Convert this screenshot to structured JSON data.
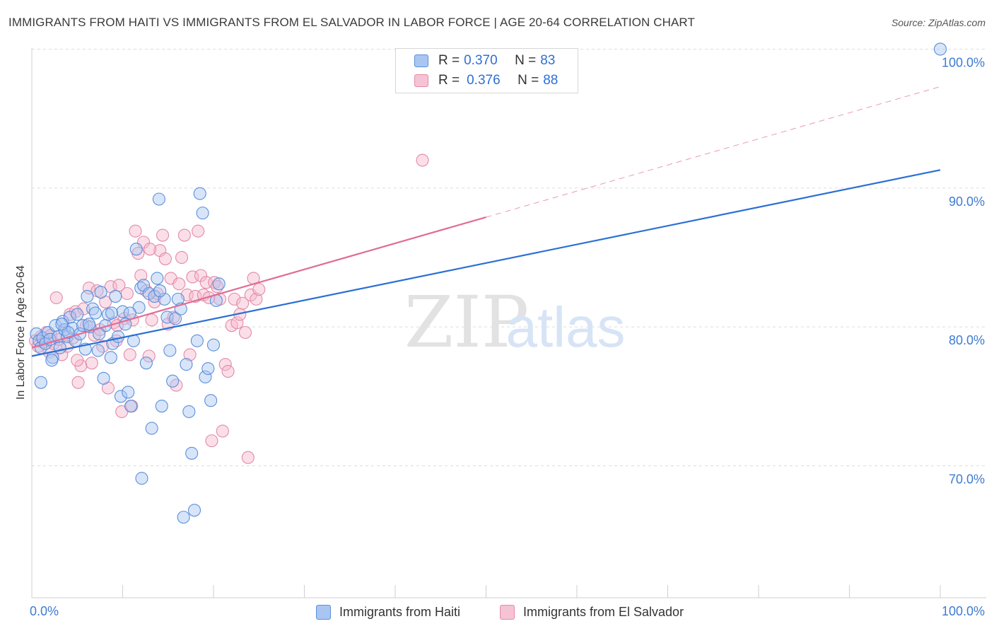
{
  "title": "IMMIGRANTS FROM HAITI VS IMMIGRANTS FROM EL SALVADOR IN LABOR FORCE | AGE 20-64 CORRELATION CHART",
  "source": "Source: ZipAtlas.com",
  "watermark": {
    "zip": "ZIP",
    "atlas": "atlas"
  },
  "colors": {
    "haiti_fill": "#a9c6f2",
    "haiti_stroke": "#5b8fdc",
    "haiti_line": "#2a6fd4",
    "salvador_fill": "#f6b8cc",
    "salvador_stroke": "#e389a8",
    "salvador_line": "#e06c96",
    "tick_text": "#3d7bd1",
    "grid": "#dddddd"
  },
  "legend": {
    "rows": [
      {
        "r_label": "R = ",
        "r_value": "0.370",
        "n_label": "N = ",
        "n_value": "83"
      },
      {
        "r_label": "R = ",
        "r_value": "0.376",
        "n_label": "N = ",
        "n_value": "88"
      }
    ]
  },
  "bottom_legend": {
    "haiti": "Immigrants from Haiti",
    "salvador": "Immigrants from El Salvador"
  },
  "chart_data": {
    "type": "scatter",
    "title": "IMMIGRANTS FROM HAITI VS IMMIGRANTS FROM EL SALVADOR IN LABOR FORCE | AGE 20-64 CORRELATION CHART",
    "xlabel": "",
    "ylabel": "In Labor Force | Age 20-64",
    "xlim": [
      0,
      100
    ],
    "ylim": [
      60.5,
      101.5
    ],
    "x_ticks": [
      "0.0%",
      "100.0%"
    ],
    "y_ticks": [
      {
        "value": 70,
        "label": "70.0%"
      },
      {
        "value": 80,
        "label": "80.0%"
      },
      {
        "value": 90,
        "label": "90.0%"
      },
      {
        "value": 100,
        "label": "100.0%"
      }
    ],
    "grid": true,
    "legend_position": "top-center",
    "series": [
      {
        "name": "Immigrants from Haiti",
        "r": 0.37,
        "n": 83,
        "trend": {
          "x": [
            0,
            100
          ],
          "y": [
            77.9,
            91.3
          ],
          "dashed_from": null
        },
        "points": [
          [
            0.5,
            79.5
          ],
          [
            0.8,
            79.0
          ],
          [
            1.0,
            78.5
          ],
          [
            1.2,
            79.2
          ],
          [
            1.5,
            78.8
          ],
          [
            1.8,
            79.6
          ],
          [
            2.0,
            79.1
          ],
          [
            2.3,
            77.8
          ],
          [
            2.6,
            80.1
          ],
          [
            2.9,
            79.3
          ],
          [
            3.1,
            78.5
          ],
          [
            3.4,
            80.4
          ],
          [
            3.6,
            79.8
          ],
          [
            3.9,
            79.3
          ],
          [
            4.2,
            80.7
          ],
          [
            4.5,
            79.9
          ],
          [
            4.8,
            79.0
          ],
          [
            5.0,
            80.9
          ],
          [
            5.3,
            79.5
          ],
          [
            5.6,
            80.1
          ],
          [
            5.9,
            78.4
          ],
          [
            6.1,
            82.2
          ],
          [
            6.4,
            80.0
          ],
          [
            6.7,
            81.3
          ],
          [
            7.0,
            81.0
          ],
          [
            7.3,
            78.3
          ],
          [
            7.6,
            82.5
          ],
          [
            7.9,
            76.3
          ],
          [
            8.1,
            80.1
          ],
          [
            8.4,
            80.9
          ],
          [
            8.7,
            77.8
          ],
          [
            8.9,
            78.8
          ],
          [
            9.2,
            82.2
          ],
          [
            9.5,
            79.3
          ],
          [
            9.8,
            75.0
          ],
          [
            10.0,
            81.1
          ],
          [
            10.3,
            80.2
          ],
          [
            10.6,
            75.3
          ],
          [
            10.9,
            74.3
          ],
          [
            11.2,
            79.0
          ],
          [
            11.5,
            85.6
          ],
          [
            11.8,
            81.4
          ],
          [
            12.0,
            82.8
          ],
          [
            12.3,
            83.0
          ],
          [
            12.6,
            77.4
          ],
          [
            12.9,
            82.4
          ],
          [
            13.2,
            72.7
          ],
          [
            13.5,
            82.2
          ],
          [
            13.8,
            83.5
          ],
          [
            14.0,
            89.2
          ],
          [
            14.3,
            74.3
          ],
          [
            14.6,
            82.0
          ],
          [
            14.9,
            80.7
          ],
          [
            15.2,
            78.3
          ],
          [
            15.5,
            76.1
          ],
          [
            15.8,
            80.6
          ],
          [
            16.1,
            82.0
          ],
          [
            16.4,
            81.3
          ],
          [
            16.7,
            66.3
          ],
          [
            17.0,
            77.3
          ],
          [
            17.3,
            73.9
          ],
          [
            17.6,
            70.9
          ],
          [
            17.9,
            66.8
          ],
          [
            18.2,
            79.0
          ],
          [
            18.5,
            89.6
          ],
          [
            18.8,
            88.2
          ],
          [
            19.1,
            76.4
          ],
          [
            19.4,
            77.0
          ],
          [
            19.7,
            74.7
          ],
          [
            20.0,
            78.7
          ],
          [
            20.3,
            81.9
          ],
          [
            20.6,
            83.1
          ],
          [
            1.0,
            76.0
          ],
          [
            2.2,
            77.6
          ],
          [
            4.0,
            79.6
          ],
          [
            6.3,
            80.2
          ],
          [
            8.8,
            81.0
          ],
          [
            10.8,
            81.0
          ],
          [
            12.1,
            69.1
          ],
          [
            14.1,
            82.6
          ],
          [
            3.3,
            80.2
          ],
          [
            7.4,
            79.5
          ],
          [
            100,
            100.0
          ]
        ]
      },
      {
        "name": "Immigrants from El Salvador",
        "r": 0.376,
        "n": 88,
        "trend": {
          "x": [
            0,
            100
          ],
          "y": [
            78.5,
            97.3
          ],
          "dashed_from": 50
        },
        "points": [
          [
            0.4,
            79.0
          ],
          [
            0.7,
            78.6
          ],
          [
            1.0,
            79.3
          ],
          [
            1.3,
            78.9
          ],
          [
            1.6,
            79.6
          ],
          [
            1.9,
            78.2
          ],
          [
            2.1,
            79.4
          ],
          [
            2.4,
            78.8
          ],
          [
            2.7,
            82.1
          ],
          [
            3.0,
            79.1
          ],
          [
            3.3,
            78.0
          ],
          [
            3.6,
            79.8
          ],
          [
            3.9,
            78.6
          ],
          [
            4.2,
            80.9
          ],
          [
            4.5,
            79.2
          ],
          [
            4.8,
            81.1
          ],
          [
            5.1,
            76.0
          ],
          [
            5.4,
            77.2
          ],
          [
            5.7,
            81.3
          ],
          [
            6.0,
            80.1
          ],
          [
            6.3,
            82.8
          ],
          [
            6.6,
            77.4
          ],
          [
            6.9,
            79.4
          ],
          [
            7.2,
            82.6
          ],
          [
            7.5,
            79.8
          ],
          [
            7.8,
            78.6
          ],
          [
            8.1,
            81.8
          ],
          [
            8.4,
            75.6
          ],
          [
            8.7,
            82.9
          ],
          [
            9.0,
            80.3
          ],
          [
            9.3,
            79.0
          ],
          [
            9.6,
            83.0
          ],
          [
            9.9,
            73.9
          ],
          [
            10.2,
            80.6
          ],
          [
            10.5,
            82.4
          ],
          [
            10.8,
            78.0
          ],
          [
            11.1,
            80.5
          ],
          [
            11.4,
            86.9
          ],
          [
            11.7,
            85.3
          ],
          [
            12.0,
            83.7
          ],
          [
            12.3,
            86.1
          ],
          [
            12.6,
            82.6
          ],
          [
            12.9,
            77.9
          ],
          [
            13.2,
            80.5
          ],
          [
            13.5,
            81.8
          ],
          [
            13.8,
            82.4
          ],
          [
            14.1,
            85.5
          ],
          [
            14.4,
            86.6
          ],
          [
            14.7,
            84.9
          ],
          [
            15.0,
            80.2
          ],
          [
            15.3,
            83.5
          ],
          [
            15.6,
            80.7
          ],
          [
            15.9,
            75.8
          ],
          [
            16.2,
            83.1
          ],
          [
            16.5,
            85.0
          ],
          [
            16.8,
            86.6
          ],
          [
            17.1,
            82.3
          ],
          [
            17.4,
            78.0
          ],
          [
            17.7,
            83.6
          ],
          [
            18.0,
            82.2
          ],
          [
            18.3,
            86.9
          ],
          [
            18.6,
            83.7
          ],
          [
            18.9,
            82.3
          ],
          [
            19.2,
            83.2
          ],
          [
            19.5,
            82.1
          ],
          [
            19.8,
            71.8
          ],
          [
            20.1,
            83.2
          ],
          [
            20.4,
            82.9
          ],
          [
            20.7,
            82.0
          ],
          [
            21.0,
            72.5
          ],
          [
            21.3,
            77.3
          ],
          [
            21.6,
            76.8
          ],
          [
            22.0,
            80.1
          ],
          [
            22.3,
            82.0
          ],
          [
            22.6,
            80.3
          ],
          [
            22.9,
            80.9
          ],
          [
            23.2,
            81.7
          ],
          [
            23.5,
            79.6
          ],
          [
            23.8,
            70.6
          ],
          [
            24.1,
            82.3
          ],
          [
            24.4,
            83.5
          ],
          [
            24.7,
            82.0
          ],
          [
            25.0,
            82.7
          ],
          [
            43.0,
            92.0
          ],
          [
            5.0,
            77.6
          ],
          [
            9.4,
            80.1
          ],
          [
            11.0,
            74.3
          ],
          [
            13.0,
            85.6
          ]
        ]
      }
    ]
  }
}
